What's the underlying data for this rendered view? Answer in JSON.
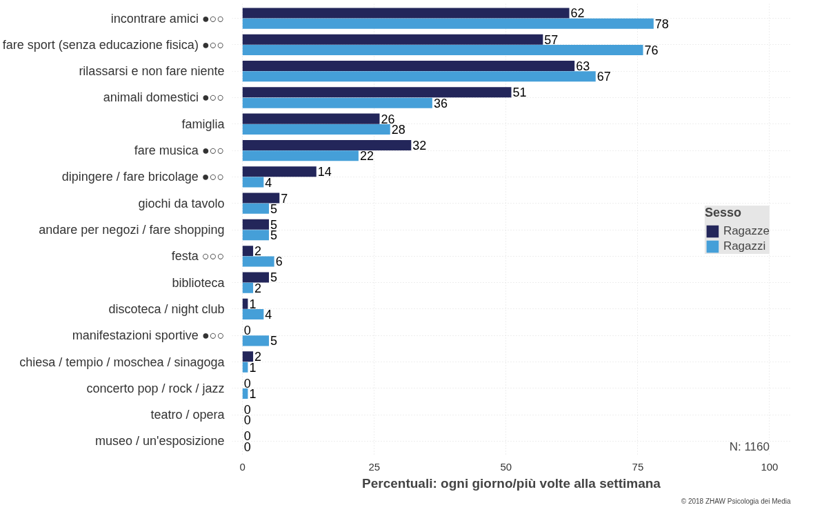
{
  "chart_data": {
    "type": "bar",
    "orientation": "horizontal",
    "xlabel": "Percentuali: ogni giorno/più volte alla settimana",
    "legend_title": "Sesso",
    "categories": [
      "incontrare amici ●○○",
      "fare sport (senza educazione fisica) ●○○",
      "rilassarsi e non fare niente",
      "animali domestici ●○○",
      "famiglia",
      "fare musica ●○○",
      "dipingere / fare bricolage ●○○",
      "giochi da tavolo",
      "andare per negozi / fare shopping",
      "festa ○○○",
      "biblioteca",
      "discoteca / night club",
      "manifestazioni sportive ●○○",
      "chiesa / tempio / moschea / sinagoga",
      "concerto pop / rock / jazz",
      "teatro / opera",
      "museo / un'esposizione"
    ],
    "series": [
      {
        "name": "Ragazze",
        "color": "#23265a",
        "values": [
          62,
          57,
          63,
          51,
          26,
          32,
          14,
          7,
          5,
          2,
          5,
          1,
          0,
          2,
          0,
          0,
          0
        ]
      },
      {
        "name": "Ragazzi",
        "color": "#459fd8",
        "values": [
          78,
          76,
          67,
          36,
          28,
          22,
          4,
          5,
          5,
          6,
          2,
          4,
          5,
          1,
          1,
          0,
          0
        ]
      }
    ],
    "xlim": [
      -2,
      104
    ],
    "xticks": [
      0,
      25,
      50,
      75,
      100
    ],
    "grid": true,
    "legend": "right",
    "data_labels": true,
    "annotations": [
      "N: 1160",
      "© 2018 ZHAW Psicologia dei Media"
    ]
  }
}
